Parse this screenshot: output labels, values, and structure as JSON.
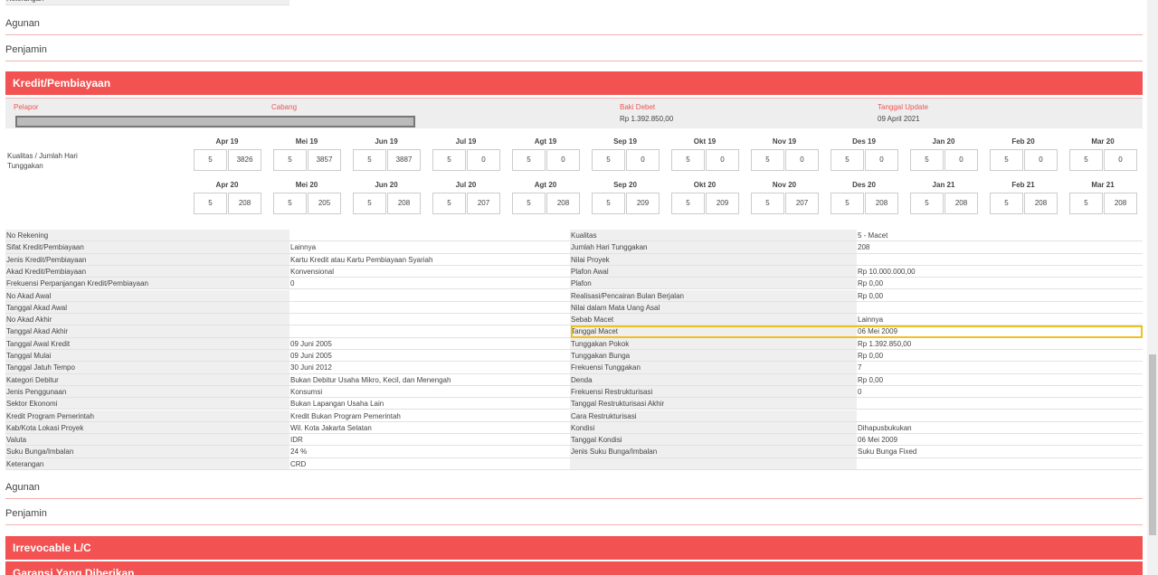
{
  "top_fragment": {
    "label": "Keterangan"
  },
  "sections_top": [
    "Agunan",
    "Penjamin"
  ],
  "kredit": {
    "title": "Kredit/Pembiayaan",
    "info": [
      {
        "label": "Pelapor"
      },
      {
        "label": "Cabang"
      },
      {
        "label": "Baki Debet",
        "value": "Rp 1.392.850,00"
      },
      {
        "label": "Tanggal Update",
        "value": "09 April 2021"
      }
    ],
    "kualitas_label": "Kualitas / Jumlah Hari Tunggakan",
    "history": [
      [
        {
          "month": "Apr 19",
          "kualitas": 5,
          "hari": 3826
        },
        {
          "month": "Mei 19",
          "kualitas": 5,
          "hari": 3857
        },
        {
          "month": "Jun 19",
          "kualitas": 5,
          "hari": 3887
        },
        {
          "month": "Jul 19",
          "kualitas": 5,
          "hari": 0
        },
        {
          "month": "Agt 19",
          "kualitas": 5,
          "hari": 0
        },
        {
          "month": "Sep 19",
          "kualitas": 5,
          "hari": 0
        },
        {
          "month": "Okt 19",
          "kualitas": 5,
          "hari": 0
        },
        {
          "month": "Nov 19",
          "kualitas": 5,
          "hari": 0
        },
        {
          "month": "Des 19",
          "kualitas": 5,
          "hari": 0
        },
        {
          "month": "Jan 20",
          "kualitas": 5,
          "hari": 0
        },
        {
          "month": "Feb 20",
          "kualitas": 5,
          "hari": 0
        },
        {
          "month": "Mar 20",
          "kualitas": 5,
          "hari": 0
        }
      ],
      [
        {
          "month": "Apr 20",
          "kualitas": 5,
          "hari": 208
        },
        {
          "month": "Mei 20",
          "kualitas": 5,
          "hari": 205
        },
        {
          "month": "Jun 20",
          "kualitas": 5,
          "hari": 208
        },
        {
          "month": "Jul 20",
          "kualitas": 5,
          "hari": 207
        },
        {
          "month": "Agt 20",
          "kualitas": 5,
          "hari": 208
        },
        {
          "month": "Sep 20",
          "kualitas": 5,
          "hari": 209
        },
        {
          "month": "Okt 20",
          "kualitas": 5,
          "hari": 209
        },
        {
          "month": "Nov 20",
          "kualitas": 5,
          "hari": 207
        },
        {
          "month": "Des 20",
          "kualitas": 5,
          "hari": 208
        },
        {
          "month": "Jan 21",
          "kualitas": 5,
          "hari": 208
        },
        {
          "month": "Feb 21",
          "kualitas": 5,
          "hari": 208
        },
        {
          "month": "Mar 21",
          "kualitas": 5,
          "hari": 208
        }
      ]
    ],
    "details": [
      [
        "No Rekening",
        null,
        "Kualitas",
        "5 - Macet"
      ],
      [
        "Sifat Kredit/Pembiayaan",
        "Lainnya",
        "Jumlah Hari Tunggakan",
        "208"
      ],
      [
        "Jenis Kredit/Pembiayaan",
        "Kartu Kredit atau Kartu Pembiayaan Syariah",
        "Nilai Proyek",
        null
      ],
      [
        "Akad Kredit/Pembiayaan",
        "Konvensional",
        "Plafon Awal",
        "Rp 10.000.000,00"
      ],
      [
        "Frekuensi Perpanjangan Kredit/Pembiayaan",
        "0",
        "Plafon",
        "Rp 0,00"
      ],
      [
        "No Akad Awal",
        null,
        "Realisasi/Pencairan Bulan Berjalan",
        "Rp 0,00"
      ],
      [
        "Tanggal Akad Awal",
        null,
        "Nilai dalam Mata Uang Asal",
        null
      ],
      [
        "No Akad Akhir",
        null,
        "Sebab Macet",
        "Lainnya"
      ],
      [
        "Tanggal Akad Akhir",
        null,
        "Tanggal Macet",
        "06 Mei 2009"
      ],
      [
        "Tanggal Awal Kredit",
        "09 Juni 2005",
        "Tunggakan Pokok",
        "Rp 1.392.850,00"
      ],
      [
        "Tanggal Mulai",
        "09 Juni 2005",
        "Tunggakan Bunga",
        "Rp 0,00"
      ],
      [
        "Tanggal Jatuh Tempo",
        "30 Juni 2012",
        "Frekuensi Tunggakan",
        "7"
      ],
      [
        "Kategori Debitur",
        "Bukan Debitur Usaha Mikro, Kecil, dan Menengah",
        "Denda",
        "Rp 0,00"
      ],
      [
        "Jenis Penggunaan",
        "Konsumsi",
        "Frekuensi Restrukturisasi",
        "0"
      ],
      [
        "Sektor Ekonomi",
        "Bukan Lapangan Usaha Lain",
        "Tanggal Restrukturisasi Akhir",
        null
      ],
      [
        "Kredit Program Pemerintah",
        "Kredit Bukan Program Pemerintah",
        "Cara Restrukturisasi",
        null
      ],
      [
        "Kab/Kota Lokasi Proyek",
        "Wil. Kota Jakarta Selatan",
        "Kondisi",
        "Dihapusbukukan"
      ],
      [
        "Valuta",
        "IDR",
        "Tanggal Kondisi",
        "06 Mei 2009"
      ],
      [
        "Suku Bunga/Imbalan",
        "24 %",
        "Jenis Suku Bunga/Imbalan",
        "Suku Bunga Fixed"
      ],
      [
        "Keterangan",
        "CRD",
        null,
        null
      ]
    ],
    "sections": [
      "Agunan",
      "Penjamin"
    ]
  },
  "next_sections": [
    "Irrevocable L/C",
    "Garansi Yang Diberikan"
  ]
}
